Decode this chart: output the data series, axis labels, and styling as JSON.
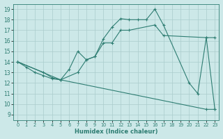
{
  "xlabel": "Humidex (Indice chaleur)",
  "xlim": [
    -0.5,
    23.5
  ],
  "ylim": [
    8.5,
    19.5
  ],
  "xticks": [
    0,
    1,
    2,
    3,
    4,
    5,
    6,
    7,
    8,
    9,
    10,
    11,
    12,
    13,
    14,
    15,
    16,
    17,
    18,
    19,
    20,
    21,
    22,
    23
  ],
  "yticks": [
    9,
    10,
    11,
    12,
    13,
    14,
    15,
    16,
    17,
    18,
    19
  ],
  "bg_color": "#cce8e8",
  "line_color": "#2e7d72",
  "grid_color": "#aacccc",
  "lines": [
    {
      "x": [
        0,
        1,
        2,
        3,
        4,
        5,
        6,
        7,
        8,
        9,
        10,
        11,
        12,
        13,
        14,
        15,
        16,
        17,
        20,
        21,
        22,
        23
      ],
      "y": [
        14.0,
        13.5,
        13.0,
        12.7,
        12.4,
        12.3,
        13.3,
        15.0,
        14.2,
        14.5,
        16.2,
        17.3,
        18.1,
        18.0,
        18.0,
        18.0,
        19.0,
        17.5,
        12.0,
        11.0,
        16.3,
        9.5
      ]
    },
    {
      "x": [
        0,
        5,
        7,
        8,
        9,
        10,
        11,
        12,
        13,
        16,
        17,
        22,
        23
      ],
      "y": [
        14.0,
        12.3,
        13.0,
        14.2,
        14.5,
        15.8,
        15.8,
        17.0,
        17.0,
        17.5,
        16.5,
        16.3,
        16.3
      ]
    },
    {
      "x": [
        0,
        3,
        4,
        5,
        22,
        23
      ],
      "y": [
        14.0,
        13.0,
        12.5,
        12.3,
        9.5,
        9.5
      ]
    }
  ]
}
